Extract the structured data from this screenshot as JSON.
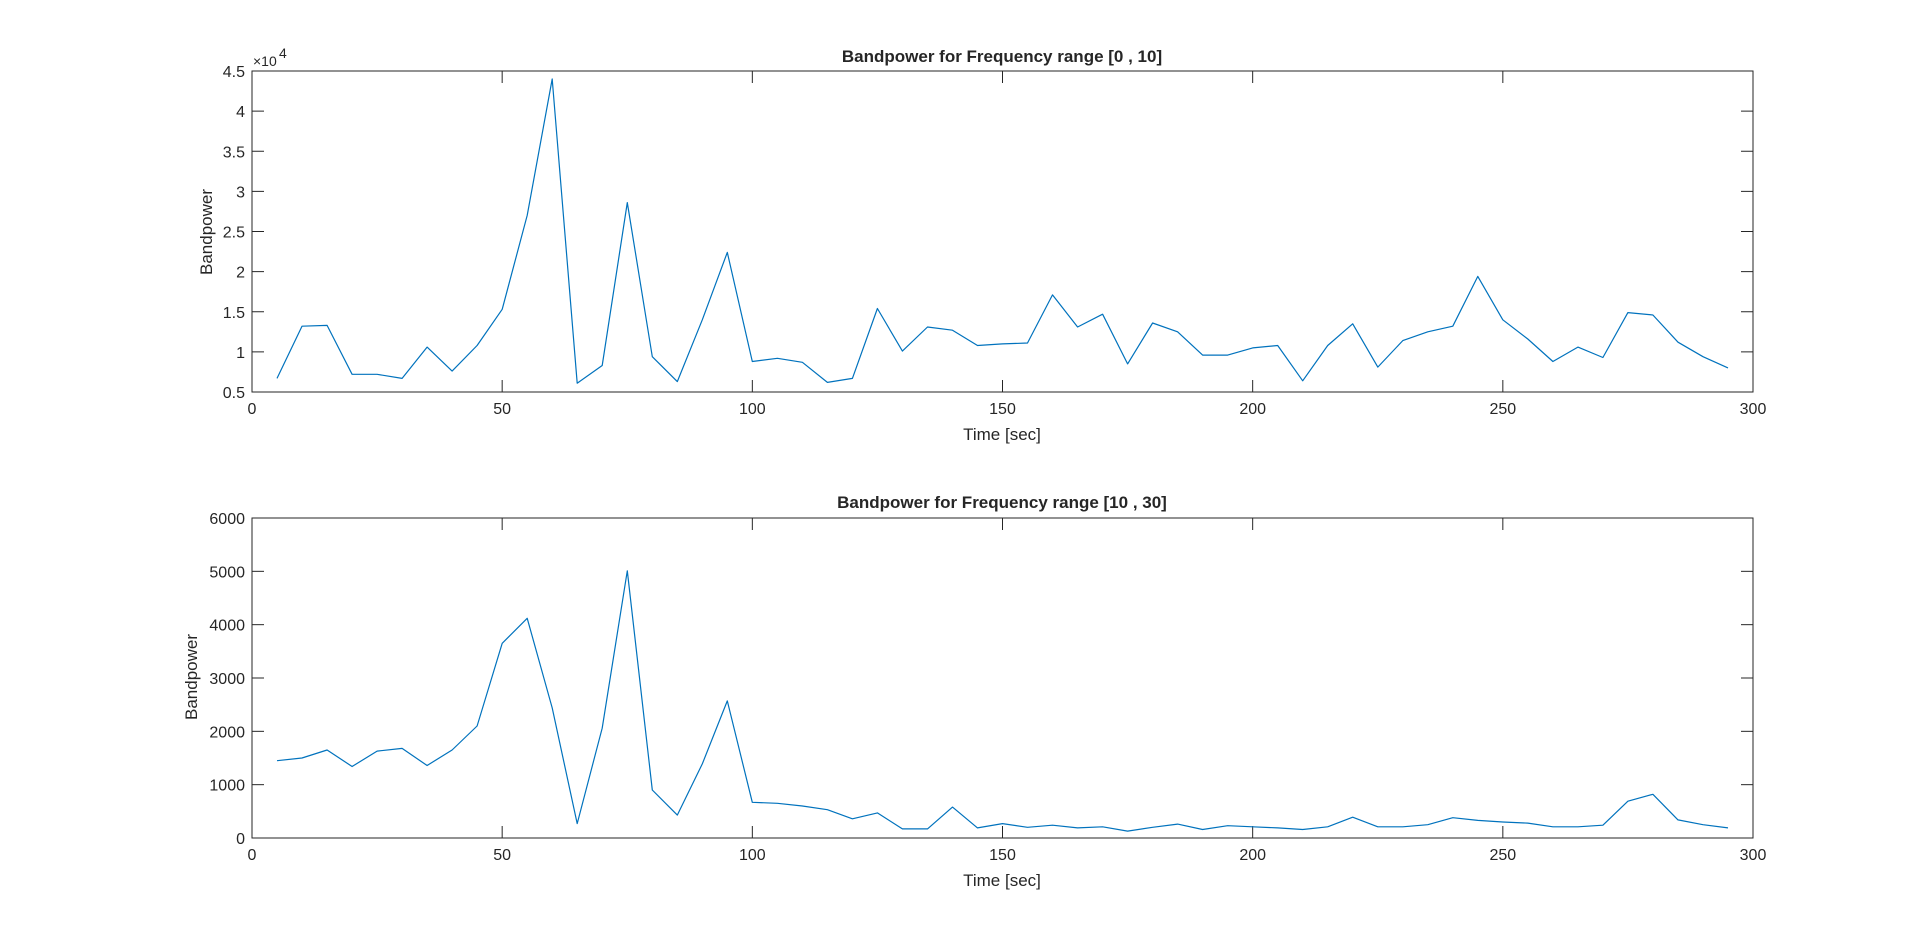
{
  "chart_data": [
    {
      "type": "line",
      "title": "Bandpower for Frequency range [0 , 10]",
      "xlabel": "Time [sec]",
      "ylabel": "Bandpower",
      "xlim": [
        0,
        300
      ],
      "ylim": [
        0.5,
        4.5
      ],
      "y_multiplier": "×10",
      "y_multiplier_exponent": "4",
      "xticks": [
        "0",
        "50",
        "100",
        "150",
        "200",
        "250",
        "300"
      ],
      "yticks": [
        "0.5",
        "1",
        "1.5",
        "2",
        "2.5",
        "3",
        "3.5",
        "4",
        "4.5"
      ],
      "grid": false,
      "color": "#0072bd",
      "x": [
        5,
        10,
        15,
        20,
        25,
        30,
        35,
        40,
        45,
        50,
        55,
        60,
        65,
        70,
        75,
        80,
        85,
        90,
        95,
        100,
        105,
        110,
        115,
        120,
        125,
        130,
        135,
        140,
        145,
        150,
        155,
        160,
        165,
        170,
        175,
        180,
        185,
        190,
        195,
        200,
        205,
        210,
        215,
        220,
        225,
        230,
        235,
        240,
        245,
        250,
        255,
        260,
        265,
        270,
        275,
        280,
        285,
        290,
        295
      ],
      "values": [
        0.67,
        1.32,
        1.33,
        0.72,
        0.72,
        0.67,
        1.06,
        0.76,
        1.08,
        1.53,
        2.7,
        4.4,
        0.61,
        0.83,
        2.86,
        0.94,
        0.63,
        1.4,
        2.24,
        0.88,
        0.92,
        0.87,
        0.62,
        0.67,
        1.54,
        1.01,
        1.31,
        1.27,
        1.08,
        1.1,
        1.11,
        1.71,
        1.31,
        1.47,
        0.85,
        1.36,
        1.25,
        0.96,
        0.96,
        1.05,
        1.08,
        0.64,
        1.08,
        1.35,
        0.81,
        1.14,
        1.25,
        1.32,
        1.94,
        1.4,
        1.16,
        0.88,
        1.06,
        0.93,
        1.49,
        1.46,
        1.12,
        0.94,
        0.8
      ]
    },
    {
      "type": "line",
      "title": "Bandpower for Frequency range [10 , 30]",
      "xlabel": "Time [sec]",
      "ylabel": "Bandpower",
      "xlim": [
        0,
        300
      ],
      "ylim": [
        0,
        6000
      ],
      "xticks": [
        "0",
        "50",
        "100",
        "150",
        "200",
        "250",
        "300"
      ],
      "yticks": [
        "0",
        "1000",
        "2000",
        "3000",
        "4000",
        "5000",
        "6000"
      ],
      "grid": false,
      "color": "#0072bd",
      "x": [
        5,
        10,
        15,
        20,
        25,
        30,
        35,
        40,
        45,
        50,
        55,
        60,
        65,
        70,
        75,
        80,
        85,
        90,
        95,
        100,
        105,
        110,
        115,
        120,
        125,
        130,
        135,
        140,
        145,
        150,
        155,
        160,
        165,
        170,
        175,
        180,
        185,
        190,
        195,
        200,
        205,
        210,
        215,
        220,
        225,
        230,
        235,
        240,
        245,
        250,
        255,
        260,
        265,
        270,
        275,
        280,
        285,
        290,
        295
      ],
      "values": [
        1450,
        1500,
        1650,
        1340,
        1630,
        1680,
        1360,
        1650,
        2100,
        3650,
        4120,
        2440,
        270,
        2060,
        5010,
        900,
        430,
        1390,
        2570,
        670,
        650,
        600,
        530,
        360,
        470,
        170,
        170,
        580,
        190,
        270,
        200,
        240,
        190,
        210,
        130,
        200,
        260,
        160,
        230,
        210,
        190,
        160,
        210,
        390,
        210,
        210,
        250,
        380,
        330,
        300,
        280,
        210,
        210,
        240,
        690,
        820,
        340,
        250,
        190
      ]
    }
  ]
}
